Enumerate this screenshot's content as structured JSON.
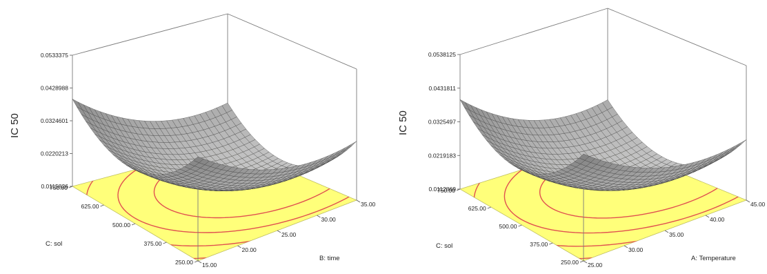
{
  "chart_data": [
    {
      "type": "surface3d",
      "title": "",
      "zlabel": "IC 50",
      "xlabel": "B: time",
      "ylabel": "C: sol",
      "x_ticks": [
        "15.00",
        "20.00",
        "25.00",
        "30.00",
        "35.00"
      ],
      "y_ticks": [
        "250.00",
        "375.00",
        "500.00",
        "625.00",
        "750.00"
      ],
      "z_ticks": [
        "0.0115826",
        "0.0220213",
        "0.0324601",
        "0.0428988",
        "0.0533375"
      ],
      "xlim": [
        15,
        35
      ],
      "ylim": [
        250,
        750
      ],
      "zlim": [
        0.0115826,
        0.0533375
      ],
      "grid": false,
      "floor_color": "#FFFF7A",
      "contour_color": "#E05050",
      "surface_color": "#3C3C3C"
    },
    {
      "type": "surface3d",
      "title": "",
      "zlabel": "IC 50",
      "xlabel": "A: Temperature",
      "ylabel": "C: sol",
      "x_ticks": [
        "25.00",
        "30.00",
        "35.00",
        "40.00",
        "45.00"
      ],
      "y_ticks": [
        "250.00",
        "375.00",
        "500.00",
        "625.00",
        "750.00"
      ],
      "z_ticks": [
        "0.0112869",
        "0.0219183",
        "0.0325497",
        "0.0431811",
        "0.0538125"
      ],
      "xlim": [
        25,
        45
      ],
      "ylim": [
        250,
        750
      ],
      "zlim": [
        0.0112869,
        0.0538125
      ],
      "grid": false,
      "floor_color": "#FFFF7A",
      "contour_color": "#E05050",
      "surface_color": "#3C3C3C"
    }
  ]
}
